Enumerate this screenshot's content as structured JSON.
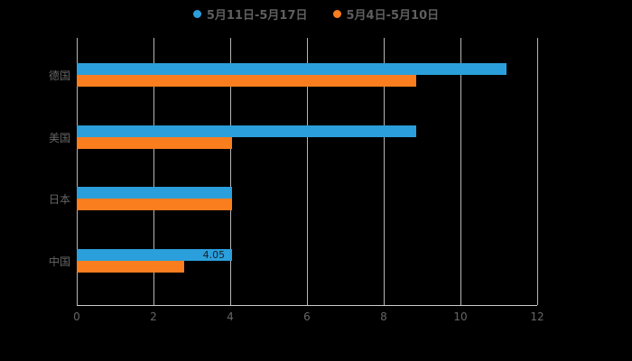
{
  "legend": {
    "items": [
      {
        "label": "5月11日-5月17日",
        "color": "#2B9FDB"
      },
      {
        "label": "5月4日-5月10日",
        "color": "#FA7D1E"
      }
    ]
  },
  "chart_data": {
    "type": "bar",
    "orientation": "horizontal",
    "title": "",
    "xlabel": "",
    "ylabel": "",
    "categories": [
      "德国",
      "美国",
      "日本",
      "中国"
    ],
    "series": [
      {
        "name": "5月11日-5月17日",
        "color": "#2B9FDB",
        "values": [
          11.2,
          8.85,
          4.05,
          4.05
        ]
      },
      {
        "name": "5月4日-5月10日",
        "color": "#FA7D1E",
        "values": [
          8.85,
          4.05,
          4.05,
          2.8
        ]
      }
    ],
    "xlim": [
      0,
      12
    ],
    "xticks": [
      "0",
      "2",
      "4",
      "6",
      "8",
      "10",
      "12"
    ],
    "grid": true,
    "legend_position": "top",
    "annotations": [
      {
        "category": "中国",
        "series": "5月11日-5月17日",
        "text": "4.05"
      }
    ]
  },
  "colors": {
    "background": "#000000",
    "grid": "#d6d6d6",
    "axis": "#cccccc",
    "tick_label": "#666666",
    "category_label": "#666666",
    "legend_label": "#5f5f5f",
    "series_blue": "#2B9FDB",
    "series_orange": "#FA7D1E"
  }
}
